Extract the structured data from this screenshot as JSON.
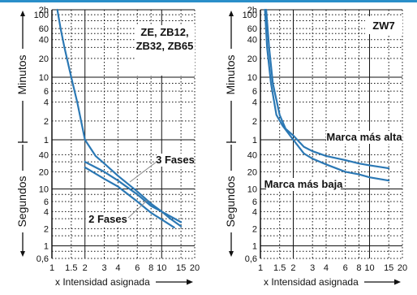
{
  "chart_data": [
    {
      "type": "line",
      "title": "ZE, ZB12,\nZB32, ZB65",
      "xlabel": "x Intensidad asignada",
      "ylabel_upper": "Minutos",
      "ylabel_lower": "Segundos",
      "x_scale": "log",
      "y_scale": "log",
      "xlim": [
        1,
        20
      ],
      "x_ticks": [
        "1",
        "1.5",
        "2",
        "3",
        "4",
        "6",
        "8",
        "10",
        "15",
        "20"
      ],
      "y_ticks_minutes": [
        "2h",
        "100",
        "60",
        "40",
        "20",
        "10",
        "6",
        "4",
        "2",
        "1"
      ],
      "y_ticks_seconds": [
        "40",
        "20",
        "10",
        "6",
        "4",
        "2",
        "1",
        "0,6"
      ],
      "series": [
        {
          "name": "",
          "points": [
            [
              1.12,
              7200
            ],
            [
              1.2,
              3600
            ],
            [
              1.3,
              1800
            ],
            [
              1.5,
              600
            ],
            [
              1.7,
              240
            ],
            [
              2.0,
              60
            ],
            [
              2.5,
              38
            ],
            [
              3,
              28
            ],
            [
              4,
              17
            ],
            [
              6,
              9
            ],
            [
              8,
              5.5
            ],
            [
              10,
              4
            ],
            [
              12,
              3
            ],
            [
              15,
              2.2
            ]
          ]
        },
        {
          "name": "3 Fases",
          "points": [
            [
              2.0,
              30
            ],
            [
              3,
              20
            ],
            [
              4,
              14
            ],
            [
              6,
              8
            ],
            [
              8,
              5
            ],
            [
              10,
              4
            ],
            [
              15,
              2.6
            ]
          ]
        },
        {
          "name": "2 Fases",
          "points": [
            [
              2.0,
              24
            ],
            [
              3,
              15
            ],
            [
              4,
              11
            ],
            [
              6,
              6
            ],
            [
              8,
              3.8
            ],
            [
              10,
              2.9
            ],
            [
              13,
              2.1
            ]
          ]
        }
      ],
      "annotations": [
        "3 Fases",
        "2 Fases"
      ]
    },
    {
      "type": "line",
      "title": "ZW7",
      "xlabel": "x Intensidad asignada",
      "ylabel_upper": "Minutos",
      "ylabel_lower": "Segundos",
      "x_scale": "log",
      "y_scale": "log",
      "xlim": [
        1,
        20
      ],
      "x_ticks": [
        "1",
        "1.5",
        "2",
        "3",
        "4",
        "6",
        "8",
        "10",
        "15",
        "20"
      ],
      "y_ticks_minutes": [
        "2h",
        "100",
        "60",
        "40",
        "20",
        "10",
        "6",
        "4",
        "2",
        "1"
      ],
      "y_ticks_seconds": [
        "40",
        "20",
        "10",
        "6",
        "4",
        "2",
        "1",
        "0,6"
      ],
      "series": [
        {
          "name": "Marca más alta",
          "points": [
            [
              1.13,
              7200
            ],
            [
              1.2,
              1800
            ],
            [
              1.3,
              480
            ],
            [
              1.5,
              150
            ],
            [
              1.7,
              90
            ],
            [
              2,
              70
            ],
            [
              2.5,
              55
            ],
            [
              3,
              46
            ],
            [
              4,
              38
            ],
            [
              6,
              32
            ],
            [
              8,
              28
            ],
            [
              10,
              26
            ],
            [
              15,
              23
            ]
          ]
        },
        {
          "name": "Marca más baja",
          "points": [
            [
              1.1,
              7200
            ],
            [
              1.15,
              1800
            ],
            [
              1.25,
              480
            ],
            [
              1.4,
              150
            ],
            [
              1.6,
              100
            ],
            [
              2,
              60
            ],
            [
              2.5,
              42
            ],
            [
              3,
              34
            ],
            [
              4,
              27
            ],
            [
              6,
              20
            ],
            [
              8,
              18
            ],
            [
              10,
              16
            ],
            [
              15,
              14
            ]
          ]
        }
      ],
      "annotations": [
        "Marca más alta",
        "Marca más baja"
      ]
    }
  ]
}
